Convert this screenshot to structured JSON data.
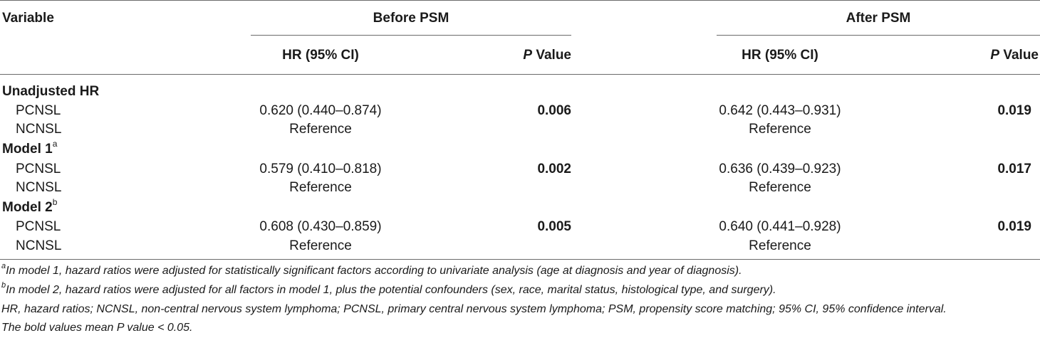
{
  "header": {
    "variable": "Variable",
    "before_psm": "Before PSM",
    "after_psm": "After PSM",
    "hr_label": "HR (95% CI)",
    "p_italic": "P",
    "p_rest": " Value"
  },
  "rows": [
    {
      "type": "group",
      "label": "Unadjusted HR",
      "sup": ""
    },
    {
      "type": "data",
      "label": "PCNSL",
      "before_hr": "0.620 (0.440–0.874)",
      "before_p": "0.006",
      "after_hr": "0.642 (0.443–0.931)",
      "after_p": "0.019"
    },
    {
      "type": "data",
      "label": "NCNSL",
      "before_hr": "Reference",
      "before_p": "",
      "after_hr": "Reference",
      "after_p": ""
    },
    {
      "type": "group",
      "label": "Model 1",
      "sup": "a"
    },
    {
      "type": "data",
      "label": "PCNSL",
      "before_hr": "0.579 (0.410–0.818)",
      "before_p": "0.002",
      "after_hr": "0.636 (0.439–0.923)",
      "after_p": "0.017"
    },
    {
      "type": "data",
      "label": "NCNSL",
      "before_hr": "Reference",
      "before_p": "",
      "after_hr": "Reference",
      "after_p": ""
    },
    {
      "type": "group",
      "label": "Model 2",
      "sup": "b"
    },
    {
      "type": "data",
      "label": "PCNSL",
      "before_hr": "0.608 (0.430–0.859)",
      "before_p": "0.005",
      "after_hr": "0.640 (0.441–0.928)",
      "after_p": "0.019"
    },
    {
      "type": "data",
      "label": "NCNSL",
      "before_hr": "Reference",
      "before_p": "",
      "after_hr": "Reference",
      "after_p": ""
    }
  ],
  "footnotes": {
    "a_sup": "a",
    "a_text": "In model 1, hazard ratios were adjusted for statistically significant factors according to univariate analysis (age at diagnosis and year of diagnosis).",
    "b_sup": "b",
    "b_text": "In model 2, hazard ratios were adjusted for all factors in model 1, plus the potential confounders (sex, race, marital status, histological type, and surgery).",
    "abbrev": "HR, hazard ratios; NCNSL, non-central nervous system lymphoma; PCNSL, primary central nervous system lymphoma; PSM, propensity score matching; 95% CI, 95% confidence interval.",
    "bold_note": "The bold values mean P value < 0.05."
  }
}
